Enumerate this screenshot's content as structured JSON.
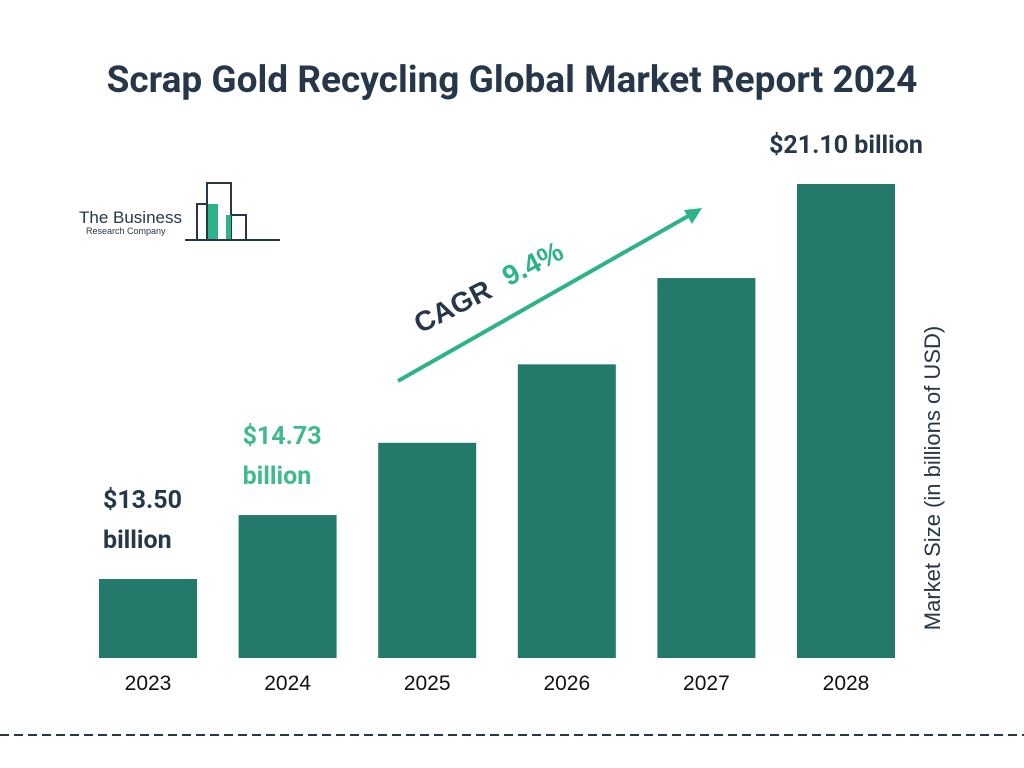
{
  "chart_data": {
    "type": "bar",
    "title": "Scrap Gold Recycling Global Market Report 2024",
    "categories": [
      "2023",
      "2024",
      "2025",
      "2026",
      "2027",
      "2028"
    ],
    "values": [
      13.5,
      14.73,
      16.12,
      17.63,
      19.29,
      21.1
    ],
    "value_labels": [
      "$13.50 billion",
      "$14.73 billion",
      null,
      null,
      null,
      "$21.10 billion"
    ],
    "color": "#237a6b",
    "y_label": "Market Size (in billions of USD)",
    "annotations": [
      "CAGR",
      "9.4%"
    ]
  },
  "logo": {
    "name": "The Business",
    "subtitle": "Research Company"
  }
}
